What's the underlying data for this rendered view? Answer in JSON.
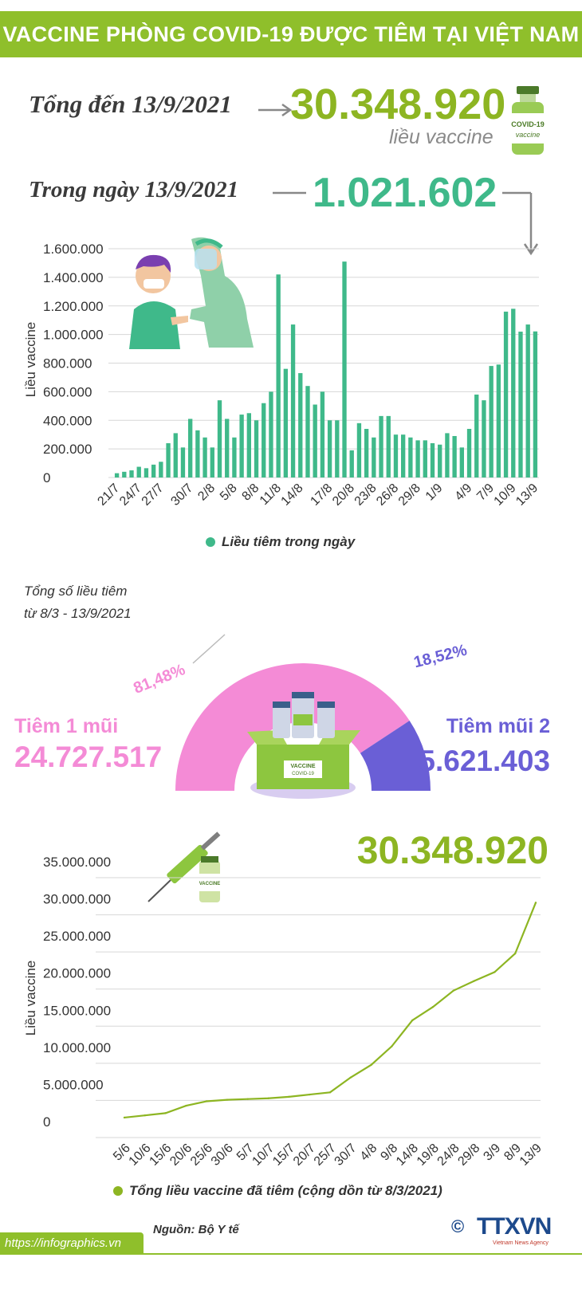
{
  "header": {
    "title": "VACCINE PHÒNG COVID-19 ĐƯỢC TIÊM TẠI VIỆT NAM"
  },
  "summary": {
    "total_label": "Tổng đến 13/9/2021",
    "total_value": "30.348.920",
    "total_unit": "liều vaccine",
    "day_label": "Trong ngày 13/9/2021",
    "day_value": "1.021.602",
    "vial_text": "COVID-19\nvaccine"
  },
  "colors": {
    "banner": "#8fbf2b",
    "teal": "#3fb98a",
    "olive": "#8db522",
    "pink": "#f48bd6",
    "purple": "#6a5fd6"
  },
  "chart_data": [
    {
      "type": "bar",
      "title": "",
      "ylabel": "Liều vaccine",
      "xlabel": "",
      "ylim": [
        0,
        1600000
      ],
      "yticks": [
        "1.600.000",
        "1.400.000",
        "1.200.000",
        "1.000.000",
        "800.000",
        "600.000",
        "400.000",
        "200.000",
        "0"
      ],
      "tick_labels": [
        "21/7",
        "24/7",
        "27/7",
        "30/7",
        "2/8",
        "5/8",
        "8/8",
        "11/8",
        "14/8",
        "17/8",
        "20/8",
        "23/8",
        "26/8",
        "29/8",
        "1/9",
        "4/9",
        "7/9",
        "10/9",
        "13/9"
      ],
      "legend": "Liều tiêm trong ngày",
      "series": [
        {
          "name": "Liều tiêm trong ngày",
          "values": [
            30000,
            40000,
            50000,
            75000,
            65000,
            90000,
            110000,
            240000,
            310000,
            210000,
            410000,
            330000,
            280000,
            210000,
            540000,
            410000,
            280000,
            440000,
            450000,
            400000,
            520000,
            600000,
            1420000,
            760000,
            1070000,
            730000,
            640000,
            510000,
            600000,
            400000,
            400000,
            1510000,
            190000,
            380000,
            340000,
            280000,
            430000,
            430000,
            300000,
            300000,
            280000,
            260000,
            260000,
            240000,
            230000,
            310000,
            290000,
            210000,
            340000,
            580000,
            540000,
            780000,
            790000,
            1160000,
            1180000,
            1020000,
            1070000,
            1021602
          ]
        }
      ]
    },
    {
      "type": "pie",
      "title": "Tổng số liều tiêm\ntừ 8/3 - 13/9/2021",
      "slices": [
        {
          "label": "Tiêm 1 mũi",
          "value": 24727517,
          "value_text": "24.727.517",
          "percent": "81,48%"
        },
        {
          "label": "Tiêm mũi 2",
          "value": 5621403,
          "value_text": "5.621.403",
          "percent": "18,52%"
        }
      ]
    },
    {
      "type": "line",
      "title": "30.348.920",
      "ylabel": "Liều vaccine",
      "ylim": [
        0,
        35000000
      ],
      "yticks": [
        "35.000.000",
        "30.000.000",
        "25.000.000",
        "20.000.000",
        "15.000.000",
        "10.000.000",
        "5.000.000",
        "0"
      ],
      "tick_labels": [
        "5/6",
        "10/6",
        "15/6",
        "20/6",
        "25/6",
        "30/6",
        "5/7",
        "10/7",
        "15/7",
        "20/7",
        "25/7",
        "30/7",
        "4/8",
        "9/8",
        "14/8",
        "19/8",
        "24/8",
        "29/8",
        "3/9",
        "8/9",
        "13/9"
      ],
      "legend": "Tổng liều vaccine đã tiêm (cộng dồn từ 8/3/2021)",
      "series": [
        {
          "name": "Tổng liều vaccine đã tiêm",
          "values": [
            1400000,
            1700000,
            2000000,
            3000000,
            3600000,
            3800000,
            3900000,
            4000000,
            4200000,
            4500000,
            4800000,
            6800000,
            8500000,
            11000000,
            14500000,
            16300000,
            18500000,
            19800000,
            21000000,
            23500000,
            30348920
          ]
        }
      ]
    }
  ],
  "footer": {
    "source": "Nguồn: Bộ Y tế",
    "url": "https://infographics.vn",
    "logo": "TTXVN",
    "logo_sub": "Vietnam News Agency",
    "copyright": "©"
  }
}
